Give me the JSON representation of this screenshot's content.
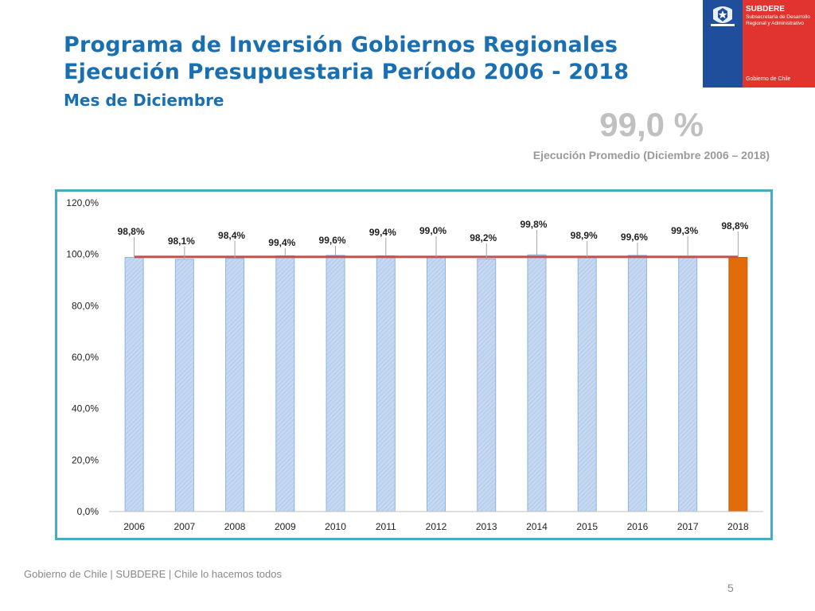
{
  "header": {
    "title_line1": "Programa de Inversión Gobiernos Regionales",
    "title_line2": "Ejecución Presupuestaria Período 2006 - 2018",
    "subtitle": "Mes de Diciembre"
  },
  "logo": {
    "title": "SUBDERE",
    "subtitle": "Subsecretaría de Desarrollo Regional y Administrativo",
    "footer": "Gobierno de Chile",
    "colors": {
      "blue": "#1f4e9c",
      "red": "#e2342f"
    }
  },
  "summary": {
    "value": "99,0 %",
    "label": "Ejecución Promedio (Diciembre 2006 – 2018)"
  },
  "chart_data": {
    "type": "bar",
    "categories": [
      "2006",
      "2007",
      "2008",
      "2009",
      "2010",
      "2011",
      "2012",
      "2013",
      "2014",
      "2015",
      "2016",
      "2017",
      "2018"
    ],
    "values": [
      98.8,
      98.1,
      98.4,
      99.4,
      99.6,
      99.4,
      99.0,
      98.2,
      99.8,
      98.9,
      99.6,
      99.3,
      98.8
    ],
    "data_labels": [
      "98,8%",
      "98,1%",
      "98,4%",
      "99,4%",
      "99,6%",
      "99,4%",
      "99,0%",
      "98,2%",
      "99,8%",
      "98,9%",
      "99,6%",
      "99,3%",
      "98,8%"
    ],
    "yticks": [
      0,
      20,
      40,
      60,
      80,
      100,
      120
    ],
    "ytick_labels": [
      "0,0%",
      "20,0%",
      "40,0%",
      "60,0%",
      "80,0%",
      "100,0%",
      "120,0%"
    ],
    "ylim": [
      0,
      120
    ],
    "average_line": 99.0,
    "highlight_category": "2018",
    "colors": {
      "bar": "#c6d9f1",
      "bar_border": "#8eb4e3",
      "highlight": "#e36c0a",
      "average_line": "#c0504d"
    },
    "grid": false,
    "legend": "none"
  },
  "footer": {
    "text": "Gobierno de Chile | SUBDERE | Chile lo hacemos todos",
    "page_number": "5"
  }
}
